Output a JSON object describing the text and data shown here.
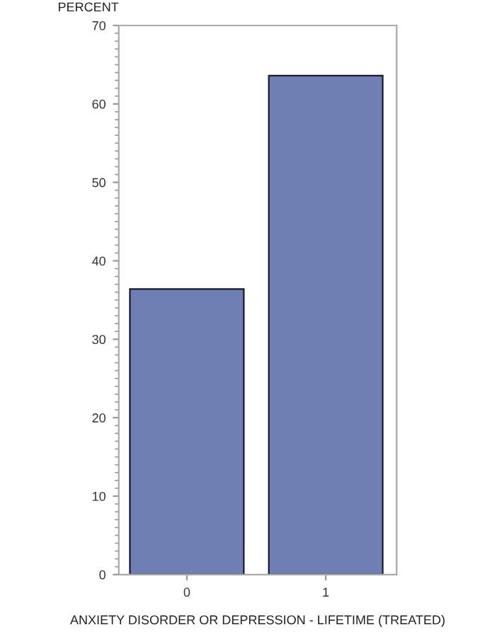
{
  "chart_data": {
    "type": "bar",
    "xlabel": "ANXIETY DISORDER OR DEPRESSION - LIFETIME (TREATED)",
    "ylabel": "PERCENT",
    "categories": [
      "0",
      "1"
    ],
    "values": [
      36.4,
      63.6
    ],
    "color": "#6f7fb3",
    "ylim": [
      0,
      70
    ],
    "yticks": [
      0,
      10,
      20,
      30,
      40,
      50,
      60,
      70
    ],
    "grid": false,
    "legend": false
  }
}
